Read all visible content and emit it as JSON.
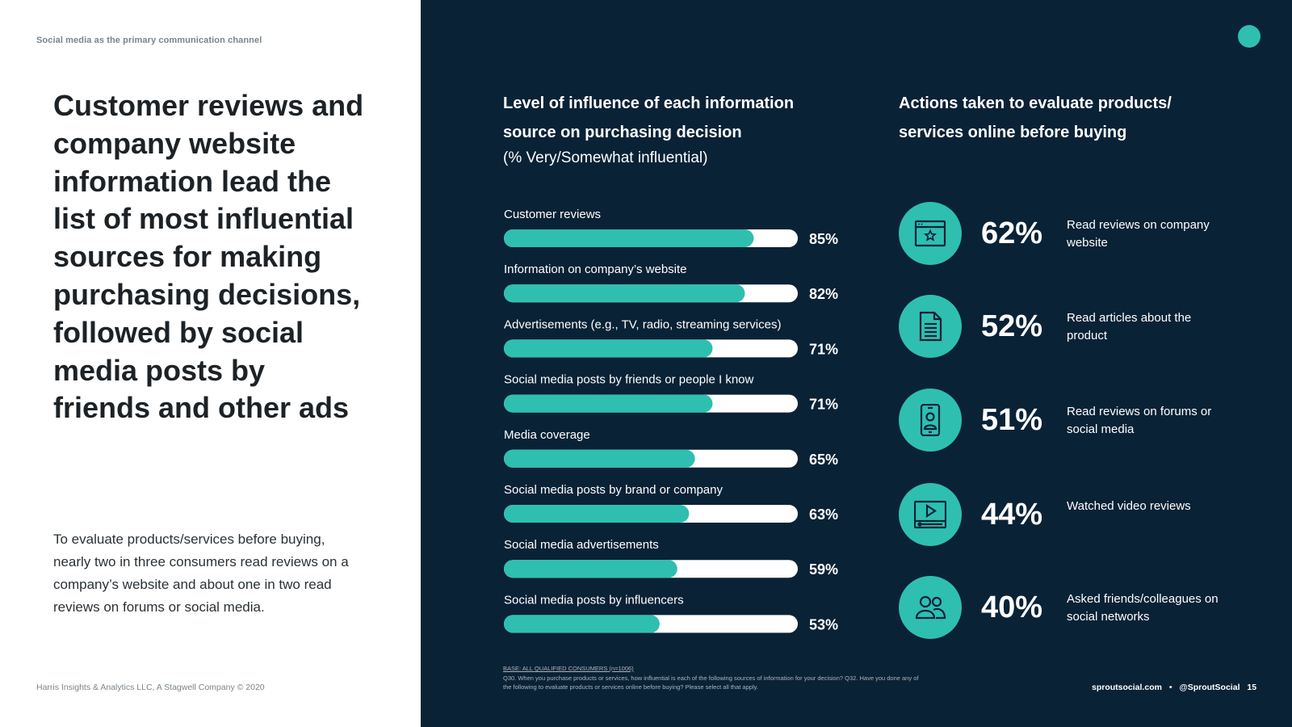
{
  "left": {
    "section_label": "Social media as the primary communication channel",
    "headline": "Customer reviews and company website information lead the list of most influential sources for making purchasing decisions, followed by social media posts by friends and other ads",
    "body": "To evaluate products/services before buying, nearly two in three consumers read reviews on a company’s website and about one in two read reviews on forums or social media.",
    "copyright": "Harris Insights & Analytics LLC, A Stagwell Company © 2020"
  },
  "chart_data": {
    "type": "bar",
    "orientation": "horizontal",
    "title": "Level of influence of each information source on purchasing decision",
    "subtitle": "(% Very/Somewhat influential)",
    "categories": [
      "Customer reviews",
      "Information on company’s website",
      "Advertisements (e.g., TV, radio, streaming services)",
      "Social media posts by friends or people I know",
      "Media coverage",
      "Social media posts by brand or company",
      "Social media advertisements",
      "Social media posts by influencers"
    ],
    "values": [
      85,
      82,
      71,
      71,
      65,
      63,
      59,
      53
    ],
    "labels": [
      "85%",
      "82%",
      "71%",
      "71%",
      "65%",
      "63%",
      "59%",
      "53%"
    ],
    "xlim": [
      0,
      100
    ],
    "unit": "%"
  },
  "actions": {
    "title": "Actions taken to evaluate products/ services online before buying",
    "items": [
      {
        "pct": "62%",
        "desc": "Read reviews on company website",
        "icon": "browser-star-icon"
      },
      {
        "pct": "52%",
        "desc": "Read articles about the product",
        "icon": "document-icon"
      },
      {
        "pct": "51%",
        "desc": "Read reviews on forums or social media",
        "icon": "phone-profile-icon"
      },
      {
        "pct": "44%",
        "desc": "Watched video reviews",
        "icon": "video-player-icon"
      },
      {
        "pct": "40%",
        "desc": "Asked friends/colleagues on social networks",
        "icon": "people-icon"
      }
    ]
  },
  "footnote": {
    "base": "BASE: ALL QUALIFIED CONSUMERS (n=1006)",
    "text": "Q30. When you purchase products or services, how influential is each of the following sources of information for your decision? Q32. Have you done any of the following to evaluate products or services online before buying? Please select all that apply."
  },
  "footer": {
    "site": "sproutsocial.com",
    "separator": "•",
    "handle": "@SproutSocial",
    "page": "15"
  },
  "colors": {
    "navy": "#0a2236",
    "teal": "#2ebfb0",
    "white": "#ffffff"
  }
}
